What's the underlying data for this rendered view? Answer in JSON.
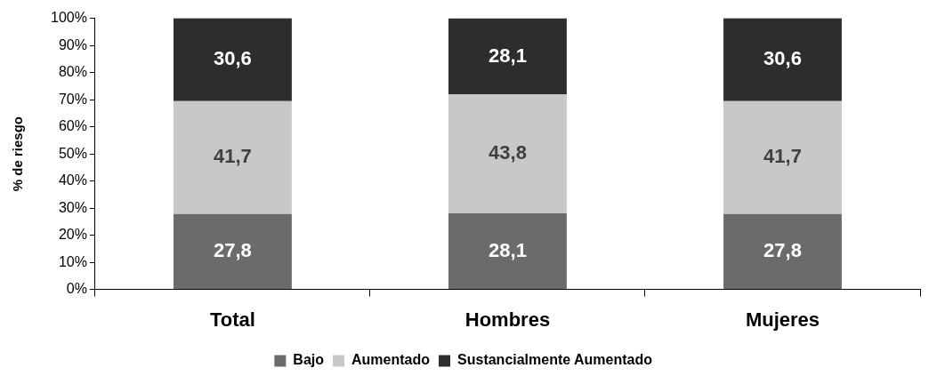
{
  "chart_data": {
    "type": "bar",
    "stacked": true,
    "ylabel": "% de riesgo",
    "categories": [
      "Total",
      "Hombres",
      "Mujeres"
    ],
    "series": [
      {
        "name": "Bajo",
        "color": "#6b6b6b",
        "values": [
          27.8,
          28.1,
          27.8
        ],
        "value_labels": [
          "27,8",
          "28,1",
          "27,8"
        ]
      },
      {
        "name": "Aumentado",
        "color": "#c8c8c8",
        "values": [
          41.7,
          43.8,
          41.7
        ],
        "value_labels": [
          "41,7",
          "43,8",
          "41,7"
        ]
      },
      {
        "name": "Sustancialmente Aumentado",
        "color": "#2d2d2d",
        "values": [
          30.6,
          28.1,
          30.6
        ],
        "value_labels": [
          "30,6",
          "28,1",
          "30,6"
        ]
      }
    ],
    "ylim": [
      0,
      100
    ],
    "yticks": [
      {
        "value": 0,
        "label": "0%"
      },
      {
        "value": 10,
        "label": "10%"
      },
      {
        "value": 20,
        "label": "20%"
      },
      {
        "value": 30,
        "label": "30%"
      },
      {
        "value": 40,
        "label": "40%"
      },
      {
        "value": 50,
        "label": "50%"
      },
      {
        "value": 60,
        "label": "60%"
      },
      {
        "value": 70,
        "label": "70%"
      },
      {
        "value": 80,
        "label": "80%"
      },
      {
        "value": 90,
        "label": "90%"
      },
      {
        "value": 100,
        "label": "100%"
      }
    ],
    "grid": false,
    "legend": "bottom"
  }
}
